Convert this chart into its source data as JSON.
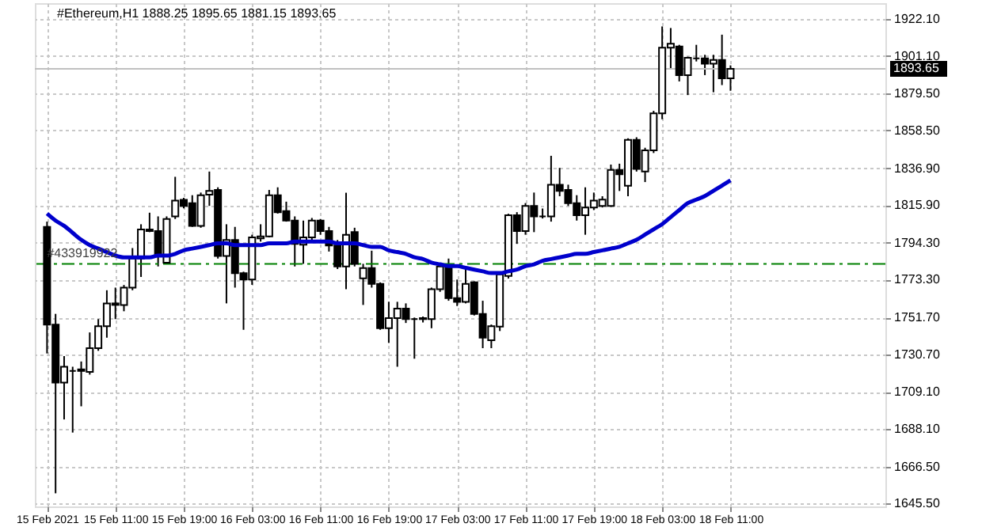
{
  "chart_data": {
    "type": "candlestick",
    "title": "#Ethereum,H1  1888.25 1895.65 1881.15 1893.65",
    "categories": [
      "15 Feb 2021",
      null,
      null,
      null,
      null,
      null,
      null,
      null,
      "15 Feb 11:00",
      null,
      null,
      null,
      null,
      null,
      null,
      null,
      "15 Feb 19:00",
      null,
      null,
      null,
      null,
      null,
      null,
      null,
      "16 Feb 03:00",
      null,
      null,
      null,
      null,
      null,
      null,
      null,
      "16 Feb 11:00",
      null,
      null,
      null,
      null,
      null,
      null,
      null,
      "16 Feb 19:00",
      null,
      null,
      null,
      null,
      null,
      null,
      null,
      "17 Feb 03:00",
      null,
      null,
      null,
      null,
      null,
      null,
      null,
      "17 Feb 11:00",
      null,
      null,
      null,
      null,
      null,
      null,
      null,
      "17 Feb 19:00",
      null,
      null,
      null,
      null,
      null,
      null,
      null,
      "18 Feb 03:00",
      null,
      null,
      null,
      null,
      null,
      null,
      null,
      "18 Feb 11:00"
    ],
    "ohlc": [
      [
        1803.4,
        1806.4,
        1731.1,
        1747.6
      ],
      [
        1747.6,
        1753.7,
        1651.2,
        1714.5
      ],
      [
        1714.5,
        1729.6,
        1693.4,
        1723.5
      ],
      [
        1721.1,
        1723.5,
        1685.9,
        1721.1
      ],
      [
        1721.1,
        1726.5,
        1700.9,
        1722.0
      ],
      [
        1720.5,
        1743.1,
        1719.0,
        1734.1
      ],
      [
        1734.1,
        1750.7,
        1732.6,
        1746.7
      ],
      [
        1746.7,
        1767.2,
        1740.1,
        1759.7
      ],
      [
        1759.7,
        1768.7,
        1750.7,
        1758.8
      ],
      [
        1758.8,
        1770.2,
        1755.2,
        1768.7
      ],
      [
        1768.7,
        1791.3,
        1767.2,
        1785.3
      ],
      [
        1785.3,
        1804.9,
        1774.8,
        1801.9
      ],
      [
        1801.9,
        1811.5,
        1800.4,
        1801.0
      ],
      [
        1801.0,
        1809.4,
        1780.8,
        1787.7
      ],
      [
        1782.9,
        1809.4,
        1782.3,
        1807.9
      ],
      [
        1809.4,
        1832.0,
        1807.9,
        1818.4
      ],
      [
        1818.9,
        1820.0,
        1814.0,
        1815.4
      ],
      [
        1817.0,
        1821.5,
        1803.4,
        1804.0
      ],
      [
        1804.0,
        1823.0,
        1802.9,
        1821.5
      ],
      [
        1821.8,
        1835.0,
        1815.4,
        1823.9
      ],
      [
        1824.5,
        1826.0,
        1785.3,
        1786.8
      ],
      [
        1786.8,
        1804.9,
        1759.7,
        1795.9
      ],
      [
        1795.9,
        1803.4,
        1768.7,
        1776.9
      ],
      [
        1776.9,
        1777.8,
        1744.6,
        1773.3
      ],
      [
        1773.3,
        1798.9,
        1770.3,
        1797.4
      ],
      [
        1796.8,
        1804.9,
        1795.0,
        1798.0
      ],
      [
        1798.0,
        1824.5,
        1797.4,
        1821.5
      ],
      [
        1821.5,
        1826.0,
        1811.0,
        1811.8
      ],
      [
        1812.4,
        1817.8,
        1806.4,
        1807.0
      ],
      [
        1807.0,
        1809.4,
        1780.8,
        1793.7
      ],
      [
        1793.2,
        1807.0,
        1782.3,
        1797.4
      ],
      [
        1797.4,
        1808.5,
        1795.9,
        1807.0
      ],
      [
        1807.0,
        1807.9,
        1798.9,
        1801.0
      ],
      [
        1801.0,
        1803.4,
        1789.3,
        1792.8
      ],
      [
        1792.8,
        1795.9,
        1779.3,
        1780.8
      ],
      [
        1780.8,
        1822.9,
        1767.8,
        1798.9
      ],
      [
        1800.4,
        1802.9,
        1780.8,
        1782.3
      ],
      [
        1774.0,
        1782.3,
        1758.8,
        1779.9
      ],
      [
        1779.9,
        1789.8,
        1768.7,
        1770.8
      ],
      [
        1770.8,
        1771.7,
        1744.6,
        1745.5
      ],
      [
        1745.5,
        1760.6,
        1737.1,
        1751.3
      ],
      [
        1751.3,
        1760.6,
        1723.5,
        1756.7
      ],
      [
        1756.7,
        1759.7,
        1748.5,
        1750.7
      ],
      [
        1750.7,
        1751.6,
        1728.1,
        1750.7
      ],
      [
        1750.7,
        1752.2,
        1748.8,
        1751.3
      ],
      [
        1750.7,
        1768.7,
        1745.5,
        1767.8
      ],
      [
        1767.8,
        1782.3,
        1766.3,
        1780.8
      ],
      [
        1780.8,
        1785.3,
        1761.2,
        1762.7
      ],
      [
        1762.7,
        1773.3,
        1758.2,
        1760.6
      ],
      [
        1760.6,
        1779.3,
        1759.7,
        1770.8
      ],
      [
        1771.7,
        1772.3,
        1752.8,
        1753.7
      ],
      [
        1753.7,
        1761.2,
        1734.1,
        1740.1
      ],
      [
        1738.6,
        1747.6,
        1734.1,
        1746.7
      ],
      [
        1746.4,
        1776.9,
        1743.9,
        1776.3
      ],
      [
        1775.4,
        1810.9,
        1773.9,
        1810.0
      ],
      [
        1810.0,
        1811.8,
        1793.7,
        1801.0
      ],
      [
        1801.0,
        1817.0,
        1798.9,
        1815.4
      ],
      [
        1815.4,
        1823.0,
        1800.4,
        1809.4
      ],
      [
        1809.4,
        1813.9,
        1808.2,
        1809.4
      ],
      [
        1809.4,
        1844.0,
        1806.4,
        1827.5
      ],
      [
        1827.5,
        1837.1,
        1820.9,
        1823.9
      ],
      [
        1824.5,
        1827.5,
        1815.4,
        1817.0
      ],
      [
        1817.0,
        1821.5,
        1807.0,
        1810.0
      ],
      [
        1810.0,
        1826.0,
        1798.9,
        1814.5
      ],
      [
        1814.5,
        1823.0,
        1813.0,
        1818.4
      ],
      [
        1815.4,
        1820.9,
        1814.5,
        1819.0
      ],
      [
        1815.4,
        1839.0,
        1814.8,
        1835.9
      ],
      [
        1835.9,
        1839.5,
        1823.9,
        1833.5
      ],
      [
        1826.9,
        1854.0,
        1820.9,
        1853.1
      ],
      [
        1853.1,
        1854.6,
        1835.0,
        1836.5
      ],
      [
        1835.0,
        1848.6,
        1829.0,
        1847.1
      ],
      [
        1847.1,
        1869.7,
        1845.6,
        1868.2
      ],
      [
        1868.2,
        1917.9,
        1864.9,
        1905.8
      ],
      [
        1905.8,
        1917.0,
        1893.5,
        1908.0
      ],
      [
        1906.5,
        1907.4,
        1886.5,
        1890.1
      ],
      [
        1890.1,
        1900.6,
        1878.7,
        1900.0
      ],
      [
        1899.7,
        1907.4,
        1897.9,
        1899.7
      ],
      [
        1899.7,
        1901.7,
        1890.1,
        1896.6
      ],
      [
        1896.6,
        1901.7,
        1880.3,
        1898.8
      ],
      [
        1898.8,
        1913.2,
        1884.4,
        1888.3
      ],
      [
        1888.25,
        1895.65,
        1881.15,
        1893.65
      ]
    ],
    "series": [
      {
        "type": "line",
        "color": "#0000cc",
        "values": [
          1811,
          1807,
          1804,
          1800,
          1796,
          1793,
          1791,
          1789,
          1787,
          1786,
          1786,
          1786,
          1786,
          1787,
          1787,
          1788,
          1790,
          1791,
          1792,
          1793,
          1794,
          1794,
          1793,
          1793,
          1793,
          1793,
          1794,
          1794,
          1794,
          1795,
          1795,
          1795,
          1795,
          1795,
          1794,
          1794,
          1794,
          1793,
          1792,
          1792,
          1790,
          1789,
          1788,
          1786,
          1785,
          1783,
          1782,
          1781,
          1781,
          1780,
          1779,
          1778,
          1777,
          1777,
          1778,
          1779,
          1781,
          1782,
          1784,
          1785,
          1786,
          1787,
          1788,
          1788,
          1789,
          1790,
          1791,
          1792,
          1794,
          1796,
          1799,
          1802,
          1805,
          1809,
          1813,
          1817,
          1819,
          1821,
          1824,
          1827,
          1830
        ]
      }
    ],
    "ref_lines": [
      {
        "axis": "y",
        "value": 1782.3,
        "color": "#008000",
        "line_style": "dashed"
      },
      {
        "axis": "y",
        "value": 1893.65,
        "label": "1893.65",
        "color": "#c0c0c0",
        "line_style": "solid"
      }
    ],
    "annotations": [
      {
        "text": "#433919922",
        "x": "15 Feb 2021",
        "y": 1782.3
      }
    ],
    "ylim": [
      1643.7,
      1931.2
    ],
    "yticks": [
      {
        "value": 1645.5,
        "label": "1645.50"
      },
      {
        "value": 1666.5,
        "label": "1666.50"
      },
      {
        "value": 1688.1,
        "label": "1688.10"
      },
      {
        "value": 1709.1,
        "label": "1709.10"
      },
      {
        "value": 1730.7,
        "label": "1730.70"
      },
      {
        "value": 1751.7,
        "label": "1751.70"
      },
      {
        "value": 1773.3,
        "label": "1773.30"
      },
      {
        "value": 1794.3,
        "label": "1794.30"
      },
      {
        "value": 1815.9,
        "label": "1815.90"
      },
      {
        "value": 1836.9,
        "label": "1836.90"
      },
      {
        "value": 1858.5,
        "label": "1858.50"
      },
      {
        "value": 1879.5,
        "label": "1879.50"
      },
      {
        "value": 1901.1,
        "label": "1901.10"
      },
      {
        "value": 1922.1,
        "label": "1922.10"
      }
    ],
    "grid": true,
    "marker": "none",
    "line_style": "solid"
  }
}
